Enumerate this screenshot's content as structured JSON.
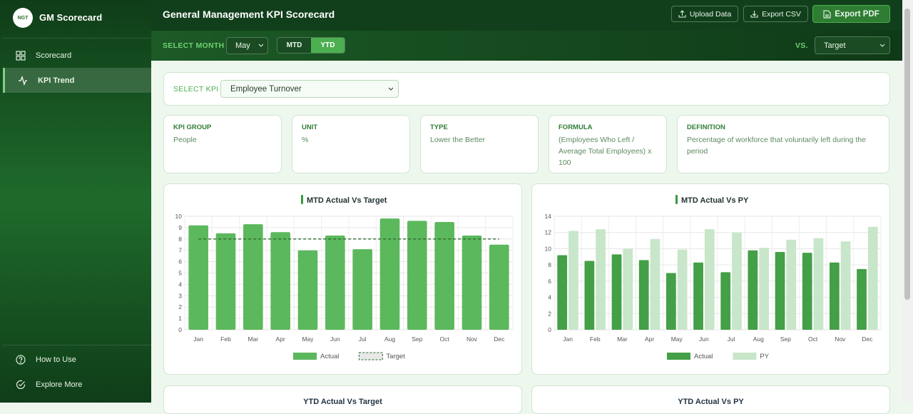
{
  "sidebar": {
    "logo": "NGT",
    "brand": "GM Scorecard",
    "nav": [
      "Scorecard",
      "KPI Trend"
    ],
    "footer": [
      "How to Use",
      "Explore More"
    ]
  },
  "header": {
    "title": "General Management KPI Scorecard",
    "buttons": [
      "Upload Data",
      "Export CSV",
      "Export PDF"
    ]
  },
  "toolbar": {
    "month_label": "SELECT MONTH",
    "month": "May",
    "modes": [
      "MTD",
      "YTD"
    ],
    "vs_label": "VS.",
    "vs": "Target"
  },
  "kpi_select": {
    "label": "SELECT KPI",
    "value": "Employee Turnover"
  },
  "info_cards": [
    {
      "label": "KPI GROUP",
      "value": "People"
    },
    {
      "label": "UNIT",
      "value": "%"
    },
    {
      "label": "TYPE",
      "value": "Lower the Better"
    },
    {
      "label": "FORMULA",
      "value": "(Employees Who Left / Average Total Employees) x 100"
    },
    {
      "label": "DEFINITION",
      "value": "Percentage of workforce that voluntarily left during the period"
    }
  ],
  "chart_data": [
    {
      "type": "bar",
      "title": "MTD Actual Vs Target",
      "categories": [
        "Jan",
        "Feb",
        "Mar",
        "Apr",
        "May",
        "Jun",
        "Jul",
        "Aug",
        "Sep",
        "Oct",
        "Nov",
        "Dec"
      ],
      "series": [
        {
          "name": "Actual",
          "color": "#5cb85c",
          "values": [
            9.2,
            8.5,
            9.3,
            8.6,
            7.0,
            8.3,
            7.1,
            9.8,
            9.6,
            9.5,
            8.3,
            7.5
          ]
        },
        {
          "name": "Target",
          "color": "#2e6b30",
          "kind": "dashed-line",
          "values": [
            8,
            8,
            8,
            8,
            8,
            8,
            8,
            8,
            8,
            8,
            8,
            8
          ]
        }
      ],
      "ylim": [
        0,
        10
      ],
      "yticks": [
        0,
        1,
        2,
        3,
        4,
        5,
        6,
        7,
        8,
        9,
        10
      ],
      "grid": true
    },
    {
      "type": "bar",
      "title": "MTD Actual Vs PY",
      "categories": [
        "Jan",
        "Feb",
        "Mar",
        "Apr",
        "May",
        "Jun",
        "Jul",
        "Aug",
        "Sep",
        "Oct",
        "Nov",
        "Dec"
      ],
      "series": [
        {
          "name": "Actual",
          "color": "#43a047",
          "values": [
            9.2,
            8.5,
            9.3,
            8.6,
            7.0,
            8.3,
            7.1,
            9.8,
            9.6,
            9.5,
            8.3,
            7.5
          ]
        },
        {
          "name": "PY",
          "color": "#c8e6c9",
          "values": [
            12.2,
            12.4,
            10.0,
            11.2,
            9.9,
            12.4,
            12.0,
            10.1,
            11.1,
            11.3,
            10.9,
            12.7
          ]
        }
      ],
      "ylim": [
        0,
        14
      ],
      "yticks": [
        0,
        2,
        4,
        6,
        8,
        10,
        12,
        14
      ],
      "grid": true
    }
  ],
  "lower_charts": [
    "YTD Actual Vs Target",
    "YTD Actual Vs PY"
  ]
}
